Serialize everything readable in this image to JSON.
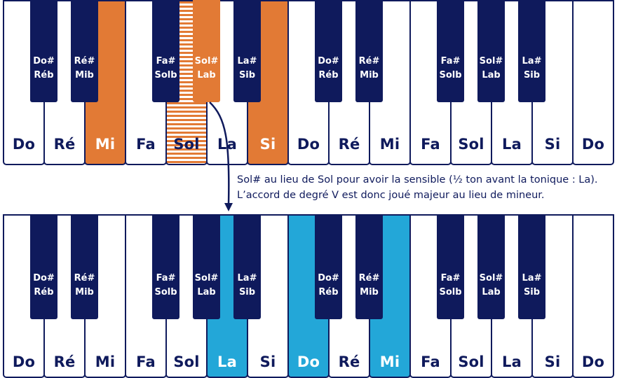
{
  "top_keyboard": {
    "white_keys": [
      {
        "label": "Do",
        "highlight": "none"
      },
      {
        "label": "Ré",
        "highlight": "none"
      },
      {
        "label": "Mi",
        "highlight": "orange"
      },
      {
        "label": "Fa",
        "highlight": "none"
      },
      {
        "label": "Sol",
        "highlight": "striped"
      },
      {
        "label": "La",
        "highlight": "none"
      },
      {
        "label": "Si",
        "highlight": "orange"
      },
      {
        "label": "Do",
        "highlight": "none"
      },
      {
        "label": "Ré",
        "highlight": "none"
      },
      {
        "label": "Mi",
        "highlight": "none"
      },
      {
        "label": "Fa",
        "highlight": "none"
      },
      {
        "label": "Sol",
        "highlight": "none"
      },
      {
        "label": "La",
        "highlight": "none"
      },
      {
        "label": "Si",
        "highlight": "none"
      },
      {
        "label": "Do",
        "highlight": "none"
      }
    ],
    "black_keys": [
      {
        "after": 0,
        "sharp": "Do#",
        "flat": "Réb",
        "highlight": "none"
      },
      {
        "after": 1,
        "sharp": "Ré#",
        "flat": "Mib",
        "highlight": "none"
      },
      {
        "after": 3,
        "sharp": "Fa#",
        "flat": "Solb",
        "highlight": "none"
      },
      {
        "after": 4,
        "sharp": "Sol#",
        "flat": "Lab",
        "highlight": "orange"
      },
      {
        "after": 5,
        "sharp": "La#",
        "flat": "Sib",
        "highlight": "none"
      },
      {
        "after": 7,
        "sharp": "Do#",
        "flat": "Réb",
        "highlight": "none"
      },
      {
        "after": 8,
        "sharp": "Ré#",
        "flat": "Mib",
        "highlight": "none"
      },
      {
        "after": 10,
        "sharp": "Fa#",
        "flat": "Solb",
        "highlight": "none"
      },
      {
        "after": 11,
        "sharp": "Sol#",
        "flat": "Lab",
        "highlight": "none"
      },
      {
        "after": 12,
        "sharp": "La#",
        "flat": "Sib",
        "highlight": "none"
      }
    ]
  },
  "bottom_keyboard": {
    "white_keys": [
      {
        "label": "Do",
        "highlight": "none"
      },
      {
        "label": "Ré",
        "highlight": "none"
      },
      {
        "label": "Mi",
        "highlight": "none"
      },
      {
        "label": "Fa",
        "highlight": "none"
      },
      {
        "label": "Sol",
        "highlight": "none"
      },
      {
        "label": "La",
        "highlight": "blue"
      },
      {
        "label": "Si",
        "highlight": "none"
      },
      {
        "label": "Do",
        "highlight": "blue"
      },
      {
        "label": "Ré",
        "highlight": "none"
      },
      {
        "label": "Mi",
        "highlight": "blue"
      },
      {
        "label": "Fa",
        "highlight": "none"
      },
      {
        "label": "Sol",
        "highlight": "none"
      },
      {
        "label": "La",
        "highlight": "none"
      },
      {
        "label": "Si",
        "highlight": "none"
      },
      {
        "label": "Do",
        "highlight": "none"
      }
    ],
    "black_keys": [
      {
        "after": 0,
        "sharp": "Do#",
        "flat": "Réb",
        "highlight": "none"
      },
      {
        "after": 1,
        "sharp": "Ré#",
        "flat": "Mib",
        "highlight": "none"
      },
      {
        "after": 3,
        "sharp": "Fa#",
        "flat": "Solb",
        "highlight": "none"
      },
      {
        "after": 4,
        "sharp": "Sol#",
        "flat": "Lab",
        "highlight": "none"
      },
      {
        "after": 5,
        "sharp": "La#",
        "flat": "Sib",
        "highlight": "none"
      },
      {
        "after": 7,
        "sharp": "Do#",
        "flat": "Réb",
        "highlight": "none"
      },
      {
        "after": 8,
        "sharp": "Ré#",
        "flat": "Mib",
        "highlight": "none"
      },
      {
        "after": 10,
        "sharp": "Fa#",
        "flat": "Solb",
        "highlight": "none"
      },
      {
        "after": 11,
        "sharp": "Sol#",
        "flat": "Lab",
        "highlight": "none"
      },
      {
        "after": 12,
        "sharp": "La#",
        "flat": "Sib",
        "highlight": "none"
      }
    ]
  },
  "caption": {
    "line1": "Sol# au lieu de Sol pour avoir la sensible (½ ton avant la tonique : La).",
    "line2": "L’accord de degré V est donc joué majeur au lieu de mineur."
  },
  "colors": {
    "navy": "#0f1a5c",
    "orange": "#e27a35",
    "blue": "#23a7d8"
  }
}
